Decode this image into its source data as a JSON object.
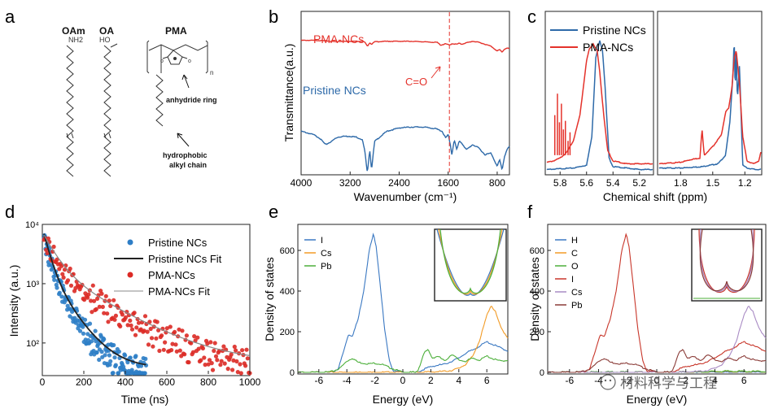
{
  "figure": {
    "panel_labels": [
      "a",
      "b",
      "c",
      "d",
      "e",
      "f"
    ],
    "watermark": "材料科学与工程"
  },
  "panel_a": {
    "molecules": [
      {
        "name": "OAm",
        "group": "NH2"
      },
      {
        "name": "OA",
        "group": "HO"
      },
      {
        "name": "PMA",
        "repeat": "n"
      }
    ],
    "annotations": [
      "anhydride ring",
      "hydrophobic",
      "alkyl chain"
    ]
  },
  "chart_data": [
    {
      "panel": "b",
      "type": "line",
      "title": "",
      "xlabel": "Wavenumber (cm⁻¹)",
      "ylabel": "Transmittance(a.u.)",
      "xlim": [
        4000,
        600
      ],
      "xticks": [
        "4000",
        "3200",
        "2400",
        "1600",
        "800"
      ],
      "marker_line": {
        "x": 1580,
        "label": "C=O"
      },
      "series": [
        {
          "name": "PMA-NCs",
          "color": "#e4322b",
          "x": [
            4000,
            3800,
            3600,
            3500,
            3420,
            3380,
            3300,
            3000,
            2960,
            2920,
            2880,
            2850,
            2800,
            2600,
            2400,
            2200,
            2000,
            1850,
            1780,
            1720,
            1640,
            1580,
            1540,
            1460,
            1420,
            1380,
            1300,
            1200,
            1100,
            1000,
            900,
            800,
            760,
            720,
            680,
            640,
            600
          ],
          "y": [
            0.84,
            0.84,
            0.83,
            0.82,
            0.81,
            0.82,
            0.82,
            0.82,
            0.8,
            0.72,
            0.79,
            0.76,
            0.81,
            0.82,
            0.82,
            0.82,
            0.81,
            0.8,
            0.8,
            0.74,
            0.77,
            0.74,
            0.77,
            0.76,
            0.78,
            0.76,
            0.79,
            0.82,
            0.8,
            0.76,
            0.72,
            0.62,
            0.65,
            0.6,
            0.66,
            0.68,
            0.67
          ]
        },
        {
          "name": "Pristine NCs",
          "color": "#2e6aa9",
          "x": [
            4000,
            3800,
            3700,
            3600,
            3500,
            3450,
            3400,
            3300,
            3200,
            3100,
            3000,
            2960,
            2920,
            2880,
            2850,
            2800,
            2600,
            2400,
            2200,
            2000,
            1800,
            1700,
            1640,
            1600,
            1560,
            1540,
            1500,
            1460,
            1420,
            1380,
            1300,
            1200,
            1100,
            1000,
            900,
            800,
            760,
            720,
            680,
            640,
            600
          ],
          "y": [
            0.52,
            0.48,
            0.44,
            0.36,
            0.4,
            0.43,
            0.45,
            0.46,
            0.46,
            0.45,
            0.42,
            0.28,
            0.02,
            0.3,
            0.06,
            0.4,
            0.52,
            0.56,
            0.57,
            0.57,
            0.55,
            0.52,
            0.44,
            0.48,
            0.34,
            0.24,
            0.42,
            0.3,
            0.4,
            0.38,
            0.3,
            0.36,
            0.32,
            0.24,
            0.26,
            0.1,
            0.18,
            0.06,
            0.22,
            0.3,
            0.34
          ]
        }
      ]
    },
    {
      "panel": "c",
      "type": "line",
      "xlabel": "Chemical shift (ppm)",
      "ylabel": "",
      "legend": [
        "Pristine NCs",
        "PMA-NCs"
      ],
      "left_xlim": [
        5.9,
        5.1
      ],
      "left_xticks": [
        "5.8",
        "5.6",
        "5.4",
        "5.2"
      ],
      "right_xlim": [
        2.0,
        1.05
      ],
      "right_xticks": [
        "1.8",
        "1.5",
        "1.2"
      ],
      "series": [
        {
          "name": "Pristine NCs",
          "color": "#2e6aa9",
          "left_x": [
            5.9,
            5.7,
            5.6,
            5.56,
            5.53,
            5.5,
            5.48,
            5.46,
            5.43,
            5.4,
            5.3,
            5.2,
            5.1
          ],
          "left_y": [
            0.02,
            0.03,
            0.05,
            0.25,
            0.8,
            0.92,
            0.86,
            0.6,
            0.1,
            0.04,
            0.03,
            0.02,
            0.02
          ],
          "right_x": [
            2.0,
            1.8,
            1.6,
            1.45,
            1.38,
            1.34,
            1.31,
            1.3,
            1.29,
            1.28,
            1.27,
            1.25,
            1.22,
            1.18,
            1.1,
            1.05
          ],
          "right_y": [
            0.03,
            0.03,
            0.04,
            0.06,
            0.12,
            0.35,
            0.7,
            0.95,
            0.55,
            0.92,
            0.5,
            0.75,
            0.05,
            0.03,
            0.02,
            0.02
          ]
        },
        {
          "name": "PMA-NCs",
          "color": "#e4322b",
          "left_x": [
            5.9,
            5.85,
            5.8,
            5.75,
            5.7,
            5.65,
            5.6,
            5.58,
            5.55,
            5.52,
            5.5,
            5.47,
            5.44,
            5.4,
            5.3,
            5.2,
            5.1
          ],
          "left_y": [
            0.07,
            0.08,
            0.1,
            0.14,
            0.22,
            0.4,
            0.78,
            0.86,
            0.9,
            0.85,
            0.7,
            0.4,
            0.15,
            0.08,
            0.06,
            0.06,
            0.06
          ],
          "right_x": [
            2.0,
            1.8,
            1.7,
            1.62,
            1.6,
            1.58,
            1.5,
            1.42,
            1.38,
            1.35,
            1.32,
            1.3,
            1.28,
            1.25,
            1.22,
            1.18,
            1.12,
            1.07,
            1.05
          ],
          "right_y": [
            0.06,
            0.07,
            0.09,
            0.1,
            0.3,
            0.12,
            0.18,
            0.26,
            0.42,
            0.45,
            0.6,
            0.8,
            0.85,
            0.62,
            0.25,
            0.08,
            0.06,
            0.08,
            0.14
          ]
        }
      ]
    },
    {
      "panel": "d",
      "type": "scatter",
      "xlabel": "Time (ns)",
      "ylabel": "Intensity (a.u.)",
      "xlim": [
        0,
        1000
      ],
      "ylim_log": [
        30,
        10000
      ],
      "xticks": [
        "0",
        "200",
        "400",
        "600",
        "800",
        "1000"
      ],
      "yticks": [
        "10²",
        "10³",
        "10⁴"
      ],
      "legend": [
        "Pristine NCs",
        "Pristine NCs Fit",
        "PMA-NCs",
        "PMA-NCs Fit"
      ],
      "series": [
        {
          "name": "Pristine NCs",
          "color": "#2e7ec6",
          "t_max": 500,
          "model": {
            "A1": 7000,
            "tau1": 28,
            "A2": 1800,
            "tau2": 85,
            "base": 38
          }
        },
        {
          "name": "PMA-NCs",
          "color": "#dc2a25",
          "t_max": 1000,
          "model": {
            "A1": 5500,
            "tau1": 55,
            "A2": 1900,
            "tau2": 210,
            "base": 45
          }
        }
      ]
    },
    {
      "panel": "e",
      "type": "line",
      "xlabel": "Energy (eV)",
      "ylabel": "Density of states",
      "xlim": [
        -7.5,
        7.5
      ],
      "ylim": [
        0,
        720
      ],
      "xticks": [
        "-6",
        "-4",
        "-2",
        "0",
        "2",
        "4",
        "6"
      ],
      "yticks": [
        "0",
        "200",
        "400",
        "600"
      ],
      "series": [
        {
          "name": "I",
          "color": "#3a78c2",
          "x": [
            -7.5,
            -5,
            -4.6,
            -4.2,
            -3.9,
            -3.6,
            -3.2,
            -2.8,
            -2.4,
            -2.1,
            -1.9,
            -1.6,
            -1.3,
            -1.0,
            -0.7,
            0,
            1.0,
            1.2,
            1.6,
            2.0,
            2.5,
            3.0,
            3.5,
            4.0,
            4.5,
            5.0,
            5.5,
            6.0,
            6.5,
            7.0,
            7.5
          ],
          "y": [
            0,
            0,
            20,
            110,
            185,
            180,
            260,
            400,
            600,
            680,
            620,
            420,
            210,
            70,
            8,
            0,
            0,
            5,
            18,
            28,
            35,
            40,
            55,
            70,
            95,
            110,
            130,
            150,
            135,
            120,
            105
          ]
        },
        {
          "name": "Cs",
          "color": "#f29b26",
          "x": [
            -7.5,
            0,
            1.0,
            2.0,
            3.0,
            3.5,
            4.0,
            4.5,
            5.0,
            5.5,
            6.0,
            6.3,
            6.6,
            7.0,
            7.5
          ],
          "y": [
            0,
            0,
            0,
            2,
            5,
            10,
            20,
            40,
            80,
            160,
            280,
            330,
            300,
            220,
            170
          ]
        },
        {
          "name": "Pb",
          "color": "#4caf3a",
          "x": [
            -7.5,
            -5.5,
            -5,
            -4.5,
            -4,
            -3.6,
            -3.2,
            -2.8,
            -2.4,
            -2,
            -1.5,
            -1.0,
            0,
            1.0,
            1.2,
            1.5,
            1.8,
            2.1,
            2.5,
            3.0,
            3.5,
            4.0,
            4.5,
            5.0,
            5.5,
            6.0,
            6.5,
            7.0,
            7.5
          ],
          "y": [
            0,
            0,
            5,
            20,
            55,
            70,
            50,
            45,
            42,
            45,
            40,
            25,
            0,
            0,
            30,
            95,
            110,
            70,
            80,
            55,
            90,
            60,
            55,
            70,
            60,
            80,
            65,
            55,
            60
          ]
        }
      ],
      "inset": true
    },
    {
      "panel": "f",
      "type": "line",
      "xlabel": "Energy (eV)",
      "ylabel": "Density of states",
      "xlim": [
        -7.5,
        7.5
      ],
      "ylim": [
        0,
        720
      ],
      "xticks": [
        "-6",
        "-4",
        "-2",
        "0",
        "2",
        "4",
        "6"
      ],
      "yticks": [
        "0",
        "200",
        "400",
        "600"
      ],
      "series": [
        {
          "name": "H",
          "color": "#3a78c2",
          "x": [
            -7.5,
            7.5
          ],
          "y": [
            0,
            0
          ]
        },
        {
          "name": "C",
          "color": "#f29b26",
          "x": [
            -7.5,
            0,
            3,
            5,
            7.5
          ],
          "y": [
            0,
            0,
            2,
            4,
            3
          ]
        },
        {
          "name": "O",
          "color": "#4caf3a",
          "x": [
            -7.5,
            -3,
            0,
            3,
            5,
            7.5
          ],
          "y": [
            0,
            3,
            0,
            3,
            6,
            4
          ]
        },
        {
          "name": "I",
          "color": "#c8362a",
          "x": [
            -7.5,
            -5,
            -4.6,
            -4.2,
            -3.9,
            -3.6,
            -3.2,
            -2.8,
            -2.4,
            -2.1,
            -1.9,
            -1.6,
            -1.3,
            -1.0,
            -0.7,
            0,
            1.0,
            1.2,
            1.6,
            2.0,
            2.5,
            3.0,
            3.5,
            4.0,
            4.5,
            5.0,
            5.5,
            6.0,
            6.5,
            7.0,
            7.5
          ],
          "y": [
            0,
            0,
            20,
            110,
            185,
            180,
            260,
            400,
            600,
            680,
            620,
            420,
            210,
            70,
            8,
            0,
            0,
            5,
            18,
            28,
            35,
            40,
            55,
            70,
            95,
            110,
            130,
            150,
            135,
            120,
            105
          ]
        },
        {
          "name": "Cs",
          "color": "#a98bc4",
          "x": [
            -7.5,
            0,
            1.0,
            2.0,
            3.0,
            3.5,
            4.0,
            4.5,
            5.0,
            5.5,
            6.0,
            6.3,
            6.6,
            7.0,
            7.5
          ],
          "y": [
            0,
            0,
            0,
            2,
            5,
            10,
            20,
            40,
            80,
            160,
            280,
            330,
            300,
            220,
            170
          ]
        },
        {
          "name": "Pb",
          "color": "#8a3b37",
          "x": [
            -7.5,
            -5.5,
            -5,
            -4.5,
            -4,
            -3.6,
            -3.2,
            -2.8,
            -2.4,
            -2,
            -1.5,
            -1.0,
            0,
            1.0,
            1.2,
            1.5,
            1.8,
            2.1,
            2.5,
            3.0,
            3.5,
            4.0,
            4.5,
            5.0,
            5.5,
            6.0,
            6.5,
            7.0,
            7.5
          ],
          "y": [
            0,
            0,
            5,
            20,
            55,
            70,
            50,
            45,
            42,
            45,
            40,
            25,
            0,
            0,
            30,
            95,
            110,
            70,
            80,
            55,
            90,
            60,
            55,
            70,
            60,
            80,
            65,
            55,
            60
          ]
        }
      ],
      "inset": true
    }
  ]
}
